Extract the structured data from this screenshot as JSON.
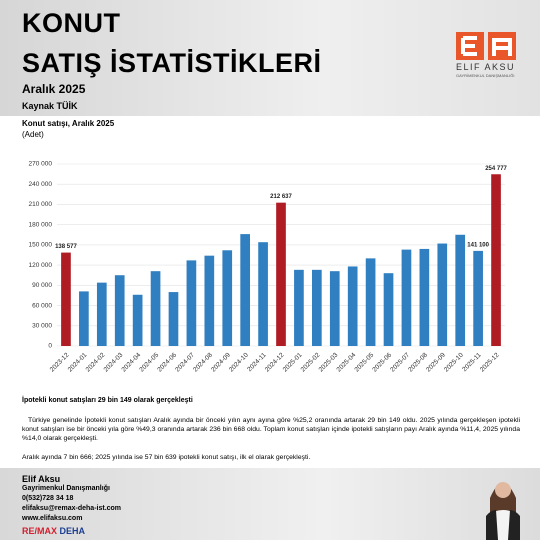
{
  "header": {
    "title_line1": "KONUT",
    "title_line2": "SATIŞ İSTATİSTİKLERİ",
    "subtitle": "Aralık 2025",
    "source": "Kaynak TÜİK",
    "logo_name": "ELIF AKSU",
    "logo_tagline": "GAYRİMENKUL DANIŞMANLIĞI"
  },
  "chart_data": {
    "type": "bar",
    "title": "Konut satışı, Aralık 2025",
    "subtitle": "(Adet)",
    "categories": [
      "2023-12",
      "2024-01",
      "2024-02",
      "2024-03",
      "2024-04",
      "2024-05",
      "2024-06",
      "2024-07",
      "2024-08",
      "2024-09",
      "2024-10",
      "2024-11",
      "2024-12",
      "2025-01",
      "2025-02",
      "2025-03",
      "2025-04",
      "2025-05",
      "2025-06",
      "2025-07",
      "2025-08",
      "2025-09",
      "2025-10",
      "2025-11",
      "2025-12"
    ],
    "values": [
      138577,
      81000,
      94000,
      105000,
      76000,
      111000,
      80000,
      127000,
      134000,
      142000,
      166000,
      154000,
      212637,
      113000,
      113000,
      111000,
      118000,
      130000,
      108000,
      143000,
      144000,
      152000,
      165000,
      141100,
      254777
    ],
    "value_labels": [
      "138 577",
      null,
      null,
      null,
      null,
      null,
      null,
      null,
      null,
      null,
      null,
      null,
      "212 637",
      null,
      null,
      null,
      null,
      null,
      null,
      null,
      null,
      null,
      null,
      "141 100",
      "254 777"
    ],
    "colors": [
      "#b01c24",
      "#2f7fc1",
      "#2f7fc1",
      "#2f7fc1",
      "#2f7fc1",
      "#2f7fc1",
      "#2f7fc1",
      "#2f7fc1",
      "#2f7fc1",
      "#2f7fc1",
      "#2f7fc1",
      "#2f7fc1",
      "#b01c24",
      "#2f7fc1",
      "#2f7fc1",
      "#2f7fc1",
      "#2f7fc1",
      "#2f7fc1",
      "#2f7fc1",
      "#2f7fc1",
      "#2f7fc1",
      "#2f7fc1",
      "#2f7fc1",
      "#2f7fc1",
      "#b01c24"
    ],
    "ylim": [
      0,
      270000
    ],
    "yticks": [
      0,
      {
        "value": 30000,
        "label": "30 000"
      },
      {
        "value": 60000,
        "label": "60 000"
      },
      {
        "value": 90000,
        "label": "90 000"
      },
      {
        "value": 120000,
        "label": "120 000"
      },
      {
        "value": 150000,
        "label": "150 000"
      },
      {
        "value": 180000,
        "label": "180 000"
      },
      {
        "value": 210000,
        "label": "210 000"
      },
      {
        "value": 240000,
        "label": "240 000"
      },
      {
        "value": 270000,
        "label": "270 000"
      }
    ],
    "grid": true
  },
  "text": {
    "heading": "İpotekli konut satışları 29 bin 149 olarak gerçekleşti",
    "paragraph1": "Türkiye genelinde İpotekli konut satışları Aralık ayında bir önceki yılın aynı ayına göre %25,2 oranında artarak 29 bin 149 oldu. 2025 yılında gerçekleşen ipotekli konut satışları ise bir önceki yıla göre %49,3 oranında artarak 236 bin 668 oldu. Toplam konut satışları içinde ipotekli satışların payı Aralık ayında %11,4, 2025 yılında %14,0 olarak gerçekleşti.",
    "paragraph2": "Aralık ayında 7 bin 666; 2025 yılında ise 57 bin 639 ipotekli konut satışı, ilk el olarak gerçekleşti."
  },
  "footer": {
    "name": "Elif Aksu",
    "role": "Gayrimenkul Danışmanlığı",
    "phone": "0(532)728 34 18",
    "email": "elifaksu@remax-deha-ist.com",
    "website": "www.elifaksu.com",
    "brand": "RE/MAX",
    "office": "DEHA"
  }
}
